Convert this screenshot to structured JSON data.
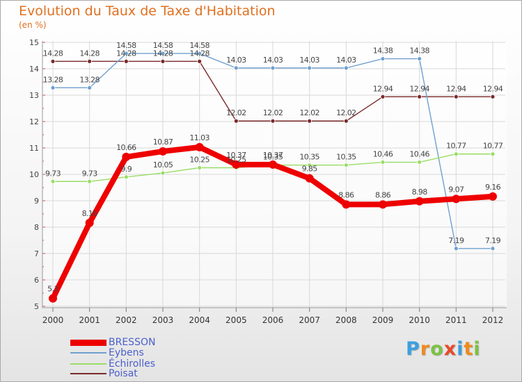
{
  "chart_data": {
    "type": "line",
    "title": "Evolution du Taux de Taxe d'Habitation",
    "ylabel": "(en %)",
    "xlabel": "",
    "x": [
      "2000",
      "2001",
      "2002",
      "2003",
      "2004",
      "2005",
      "2006",
      "2007",
      "2008",
      "2009",
      "2010",
      "2011",
      "2012"
    ],
    "ylim": [
      5,
      15
    ],
    "yticks": [
      "5",
      "6",
      "7",
      "8",
      "9",
      "10",
      "11",
      "12",
      "13",
      "14",
      "15"
    ],
    "grid": true,
    "legend_position": "bottom-left",
    "series": [
      {
        "name": "BRESSON",
        "color": "#ee0000",
        "values": [
          5.3,
          8.16,
          10.66,
          10.87,
          11.03,
          10.37,
          10.37,
          9.85,
          8.86,
          8.86,
          8.98,
          9.07,
          9.16
        ],
        "labels": [
          "5.3",
          "8.16",
          "10.66",
          "10.87",
          "11.03",
          "10.37",
          "10.37",
          "9.85",
          "8.86",
          "8.86",
          "8.98",
          "9.07",
          "9.16"
        ]
      },
      {
        "name": "Eybens",
        "color": "#6fa0d0",
        "values": [
          13.28,
          13.28,
          14.58,
          14.58,
          14.58,
          14.03,
          14.03,
          14.03,
          14.03,
          14.38,
          14.38,
          7.19,
          7.19
        ],
        "labels": [
          "13.28",
          "13.28",
          "14.58",
          "14.58",
          "14.58",
          "14.03",
          "14.03",
          "14.03",
          "14.03",
          "14.38",
          "14.38",
          "7.19",
          "7.19"
        ]
      },
      {
        "name": "Echirolles",
        "color": "#99dd66",
        "values": [
          9.73,
          9.73,
          9.9,
          10.05,
          10.25,
          10.25,
          10.35,
          10.35,
          10.35,
          10.46,
          10.46,
          10.77,
          10.77
        ],
        "labels": [
          "9.73",
          "9.73",
          "9.9",
          "10.05",
          "10.25",
          "10.25",
          "10.35",
          "10.35",
          "10.35",
          "10.46",
          "10.46",
          "10.77",
          "10.77"
        ]
      },
      {
        "name": "Poisat",
        "color": "#7a2a2a",
        "values": [
          14.28,
          14.28,
          14.28,
          14.28,
          14.28,
          12.02,
          12.02,
          12.02,
          12.02,
          12.94,
          12.94,
          12.94,
          12.94
        ],
        "labels": [
          "14.28",
          "14.28",
          "14.28",
          "14.28",
          "14.28",
          "12.02",
          "12.02",
          "12.02",
          "12.02",
          "12.94",
          "12.94",
          "12.94",
          "12.94"
        ]
      }
    ]
  },
  "legend": {
    "items": [
      {
        "label": "BRESSON",
        "color": "#ee0000"
      },
      {
        "label": "Eybens",
        "color": "#6fa0d0"
      },
      {
        "label": "Échirolles",
        "color": "#99dd66"
      },
      {
        "label": "Poisat",
        "color": "#7a2a2a"
      }
    ]
  },
  "brand": {
    "letters": [
      "P",
      "r",
      "o",
      "x",
      "i",
      "t",
      "i"
    ],
    "colors": [
      "#3aa0e0",
      "#f08a20",
      "#7cc242",
      "#e84a2a",
      "#3aa0e0",
      "#f08a20",
      "#7cc242"
    ]
  }
}
